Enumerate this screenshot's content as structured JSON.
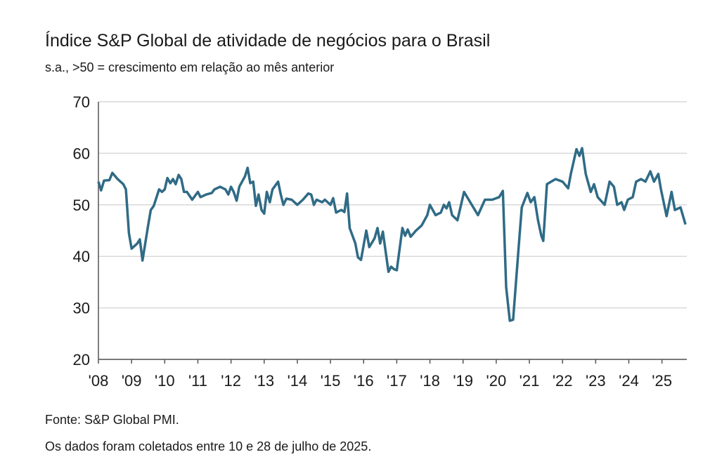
{
  "chart_data": {
    "type": "line",
    "title": "Índice S&P Global de atividade de negócios para o Brasil",
    "subtitle": "s.a., >50 = crescimento em relação ao mês anterior",
    "source": "Fonte: S&P Global PMI.",
    "note": "Os dados foram coletados entre 10 e 28 de julho de 2025.",
    "color": "#2f6b86",
    "grid": true,
    "xlim": [
      2008,
      2025.75
    ],
    "ylim": [
      20,
      70
    ],
    "yticks": [
      20,
      30,
      40,
      50,
      60,
      70
    ],
    "xticks": [
      {
        "value": 2008,
        "label": "'08"
      },
      {
        "value": 2009,
        "label": "'09"
      },
      {
        "value": 2010,
        "label": "'10"
      },
      {
        "value": 2011,
        "label": "'11"
      },
      {
        "value": 2012,
        "label": "'12"
      },
      {
        "value": 2013,
        "label": "'13"
      },
      {
        "value": 2014,
        "label": "'14"
      },
      {
        "value": 2015,
        "label": "'15"
      },
      {
        "value": 2016,
        "label": "'16"
      },
      {
        "value": 2017,
        "label": "'17"
      },
      {
        "value": 2018,
        "label": "'18"
      },
      {
        "value": 2019,
        "label": "'19"
      },
      {
        "value": 2020,
        "label": "'20"
      },
      {
        "value": 2021,
        "label": "'21"
      },
      {
        "value": 2022,
        "label": "'22"
      },
      {
        "value": 2023,
        "label": "'23"
      },
      {
        "value": 2024,
        "label": "'24"
      },
      {
        "value": 2025,
        "label": "'25"
      }
    ],
    "x": [
      2008.0,
      2008.08,
      2008.17,
      2008.33,
      2008.42,
      2008.58,
      2008.75,
      2008.83,
      2008.92,
      2009.0,
      2009.17,
      2009.25,
      2009.33,
      2009.5,
      2009.58,
      2009.67,
      2009.83,
      2009.92,
      2010.0,
      2010.08,
      2010.17,
      2010.25,
      2010.33,
      2010.42,
      2010.5,
      2010.58,
      2010.67,
      2010.83,
      2011.0,
      2011.08,
      2011.25,
      2011.42,
      2011.5,
      2011.67,
      2011.83,
      2011.92,
      2012.0,
      2012.08,
      2012.17,
      2012.25,
      2012.42,
      2012.5,
      2012.58,
      2012.67,
      2012.75,
      2012.83,
      2012.92,
      2013.0,
      2013.08,
      2013.17,
      2013.25,
      2013.42,
      2013.5,
      2013.58,
      2013.67,
      2013.83,
      2014.0,
      2014.17,
      2014.33,
      2014.42,
      2014.5,
      2014.58,
      2014.75,
      2014.83,
      2015.0,
      2015.08,
      2015.17,
      2015.33,
      2015.42,
      2015.5,
      2015.58,
      2015.75,
      2015.83,
      2015.92,
      2016.08,
      2016.17,
      2016.33,
      2016.42,
      2016.5,
      2016.58,
      2016.75,
      2016.83,
      2016.92,
      2017.0,
      2017.17,
      2017.25,
      2017.33,
      2017.42,
      2017.58,
      2017.75,
      2017.92,
      2018.0,
      2018.17,
      2018.33,
      2018.42,
      2018.5,
      2018.58,
      2018.67,
      2018.83,
      2019.03,
      2019.45,
      2019.66,
      2019.88,
      2020.09,
      2020.2,
      2020.3,
      2020.41,
      2020.51,
      2020.68,
      2020.77,
      2020.94,
      2021.04,
      2021.15,
      2021.26,
      2021.36,
      2021.42,
      2021.53,
      2021.79,
      2022.0,
      2022.17,
      2022.25,
      2022.42,
      2022.51,
      2022.59,
      2022.7,
      2022.85,
      2022.95,
      2023.06,
      2023.27,
      2023.42,
      2023.55,
      2023.65,
      2023.78,
      2023.86,
      2023.97,
      2024.12,
      2024.22,
      2024.37,
      2024.5,
      2024.65,
      2024.76,
      2024.89,
      2024.97,
      2025.14,
      2025.29,
      2025.39,
      2025.56,
      2025.71
    ],
    "series": [
      {
        "name": "PMI",
        "values": [
          54.5,
          52.8,
          54.7,
          54.8,
          56.2,
          55,
          54,
          53,
          44.5,
          41.5,
          42.5,
          43.3,
          39.2,
          46,
          49,
          49.8,
          53,
          52.5,
          53,
          55.2,
          54.2,
          55,
          54,
          55.8,
          55,
          52.5,
          52.5,
          51,
          52.5,
          51.5,
          52,
          52.3,
          53,
          53.5,
          53,
          52,
          53.5,
          52.5,
          50.8,
          53.5,
          55.5,
          57.2,
          54.2,
          54.5,
          49.8,
          52,
          49,
          48.3,
          52.5,
          50.5,
          53,
          54.5,
          52,
          50,
          51.2,
          51,
          50,
          51,
          52.2,
          52,
          50,
          51,
          50.5,
          51,
          50,
          51.3,
          48.5,
          49,
          48.6,
          52.2,
          45.5,
          42.5,
          39.8,
          39.3,
          45,
          41.8,
          43.5,
          45.5,
          42.5,
          44.8,
          37,
          38,
          37.5,
          37.3,
          45.5,
          44,
          45.2,
          43.8,
          45,
          46,
          48,
          50,
          48,
          48.5,
          50,
          49.3,
          50.5,
          48,
          47,
          52.5,
          48,
          51,
          51,
          51.5,
          52.7,
          34,
          27.5,
          27.7,
          42,
          49.5,
          52.3,
          50.5,
          51.5,
          47,
          44,
          43,
          54,
          55,
          54.5,
          53.2,
          56,
          60.8,
          59.5,
          61,
          56,
          52.5,
          54,
          51.5,
          50,
          54.5,
          53.5,
          50,
          50.5,
          49,
          51,
          51.5,
          54.5,
          55,
          54.5,
          56.5,
          54.5,
          56,
          53,
          47.8,
          52.5,
          49,
          49.5,
          46.2
        ]
      }
    ]
  }
}
